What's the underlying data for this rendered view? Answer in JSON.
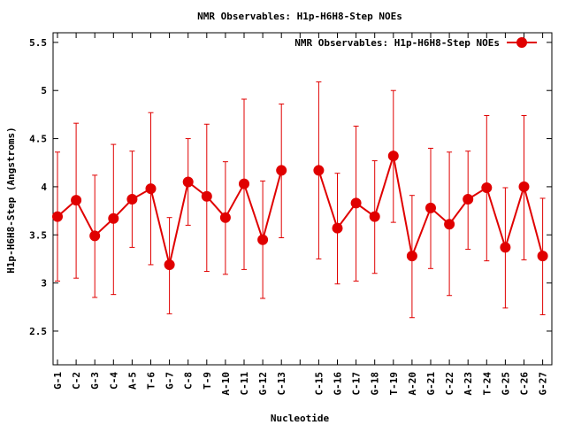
{
  "chart_data": {
    "type": "line",
    "title": "NMR Observables: H1p-H6H8-Step NOEs",
    "xlabel": "Nucleotide",
    "ylabel": "H1p-H6H8-Step (Angstroms)",
    "ylim": [
      2.15,
      5.6
    ],
    "y_ticks": [
      2.5,
      3,
      3.5,
      4,
      4.5,
      5,
      5.5
    ],
    "y_tick_labels": [
      "2.5",
      "3",
      "3.5",
      "4",
      "4.5",
      "5",
      "5.5"
    ],
    "grid": false,
    "legend_position": "top-right",
    "line_color": "#e00000",
    "categories": [
      "G-1",
      "C-2",
      "G-3",
      "C-4",
      "A-5",
      "T-6",
      "G-7",
      "C-8",
      "T-9",
      "A-10",
      "C-11",
      "G-12",
      "C-13",
      "",
      "C-15",
      "G-16",
      "C-17",
      "G-18",
      "T-19",
      "A-20",
      "G-21",
      "C-22",
      "A-23",
      "T-24",
      "G-25",
      "C-26",
      "G-27"
    ],
    "series": [
      {
        "name": "NMR Observables: H1p-H6H8-Step NOEs",
        "values": [
          3.69,
          3.86,
          3.49,
          3.67,
          3.87,
          3.98,
          3.19,
          4.05,
          3.9,
          3.68,
          4.03,
          3.45,
          4.17,
          null,
          4.17,
          3.57,
          3.83,
          3.69,
          4.32,
          3.28,
          3.78,
          3.61,
          3.87,
          3.99,
          3.37,
          4.0,
          3.28
        ],
        "err_low": [
          3.02,
          3.05,
          2.85,
          2.88,
          3.37,
          3.19,
          2.68,
          3.6,
          3.12,
          3.09,
          3.14,
          2.84,
          3.47,
          null,
          3.25,
          2.99,
          3.02,
          3.1,
          3.63,
          2.64,
          3.15,
          2.87,
          3.35,
          3.23,
          2.74,
          3.24,
          2.67
        ],
        "err_high": [
          4.36,
          4.66,
          4.12,
          4.44,
          4.37,
          4.77,
          3.68,
          4.5,
          4.65,
          4.26,
          4.91,
          4.06,
          4.86,
          null,
          5.09,
          4.14,
          4.63,
          4.27,
          5.0,
          3.91,
          4.4,
          4.36,
          4.37,
          4.74,
          3.99,
          4.74,
          3.88
        ]
      }
    ]
  }
}
